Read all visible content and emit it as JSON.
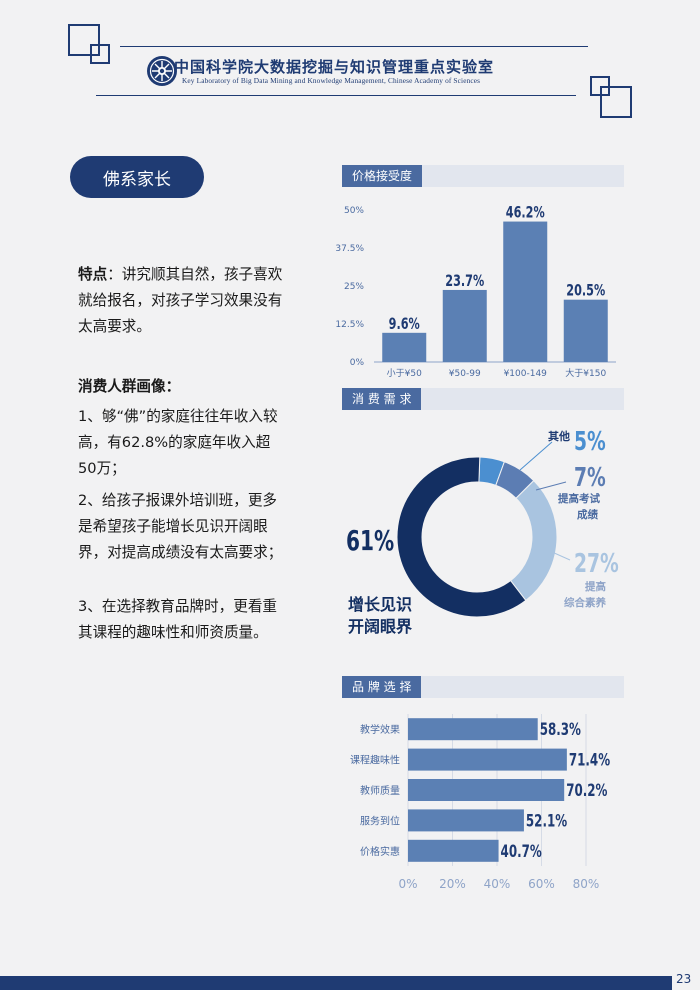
{
  "header": {
    "lab_name_zh": "中国科学院大数据挖掘与知识管理重点实验室",
    "lab_name_en": "Key Laboratory of Big Data Mining and Knowledge Management, Chinese Academy of Sciences"
  },
  "pill_label": "佛系家长",
  "left": {
    "feature_title": "特点",
    "feature_text": "：讲究顺其自然，孩子喜欢就给报名，对孩子学习效果没有太高要求。",
    "portrait_title": "消费人群画像：",
    "items": [
      "1、够“佛”的家庭往往年收入较高，有62.8%的家庭年收入超50万；",
      "2、给孩子报课外培训班，更多是希望孩子能增长见识开阔眼界，对提高成绩没有太高要求；",
      "3、在选择教育品牌时，更看重其课程的趣味性和师资质量。"
    ]
  },
  "sections": {
    "price": "价格接受度",
    "demand": "消 费 需 求",
    "brand": "品 牌 选 择"
  },
  "chart_data": [
    {
      "type": "bar",
      "title": "价格接受度",
      "categories": [
        "小于¥50",
        "¥50-99",
        "¥100-149",
        "大于¥150"
      ],
      "values": [
        9.6,
        23.7,
        46.2,
        20.5
      ],
      "value_labels": [
        "9.6%",
        "23.7%",
        "46.2%",
        "20.5%"
      ],
      "yticks": [
        "0%",
        "12.5%",
        "25%",
        "37.5%",
        "50%"
      ],
      "ylim": [
        0,
        50
      ],
      "color": "#5b80b4"
    },
    {
      "type": "pie",
      "title": "消 费 需 求",
      "slices": [
        {
          "label": "增长见识开阔眼界",
          "value": 61,
          "value_label": "61%",
          "color": "#132f62"
        },
        {
          "label": "提高综合素养",
          "value": 27,
          "value_label": "27%",
          "color": "#a9c4e0"
        },
        {
          "label": "提高考试成绩",
          "value": 7,
          "value_label": "7%",
          "color": "#5c7db3"
        },
        {
          "label": "其他",
          "value": 5,
          "value_label": "5%",
          "color": "#4b8fd0"
        }
      ],
      "labels_display": {
        "big_label_1": "增长见识",
        "big_label_2": "开阔眼界",
        "exam_1": "提高考试",
        "exam_2": "成绩",
        "general_1": "提高",
        "general_2": "综合素养",
        "other": "其他"
      }
    },
    {
      "type": "bar",
      "orientation": "horizontal",
      "title": "品 牌 选 择",
      "categories": [
        "教学效果",
        "课程趣味性",
        "教师质量",
        "服务到位",
        "价格实惠"
      ],
      "values": [
        58.3,
        71.4,
        70.2,
        52.1,
        40.7
      ],
      "value_labels": [
        "58.3%",
        "71.4%",
        "70.2%",
        "52.1%",
        "40.7%"
      ],
      "xticks": [
        "0%",
        "20%",
        "40%",
        "60%",
        "80%"
      ],
      "xlim": [
        0,
        80
      ],
      "color": "#5b80b4"
    }
  ],
  "page_number": "23"
}
